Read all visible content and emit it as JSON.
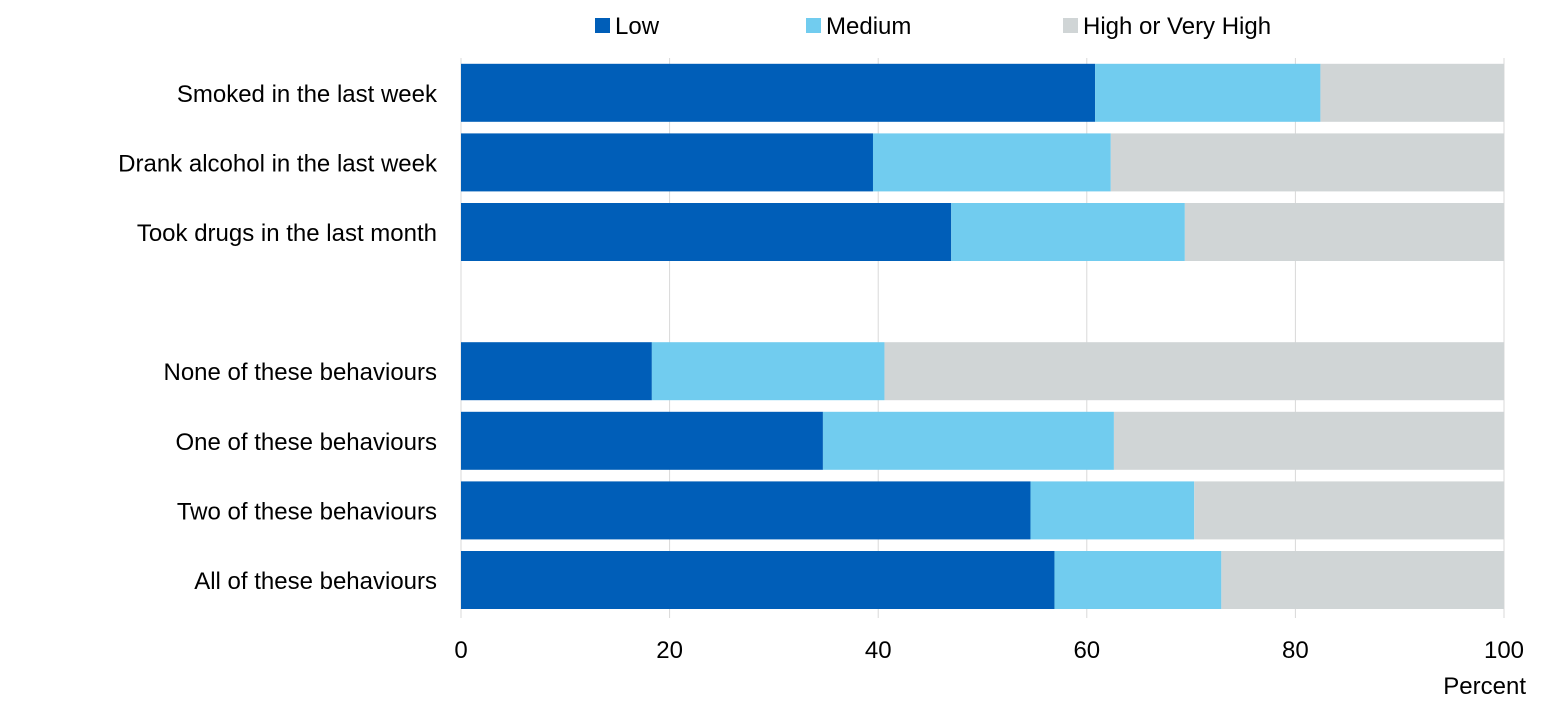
{
  "chart_data": {
    "type": "bar",
    "orientation": "horizontal",
    "stacked": true,
    "categories": [
      "Smoked in the last week",
      "Drank alcohol in the last week",
      "Took drugs in the last month",
      "",
      "None of these behaviours",
      "One of these behaviours",
      "Two of these behaviours",
      "All of these behaviours"
    ],
    "series": [
      {
        "name": "Low",
        "color": "#005EB8",
        "values": [
          60.8,
          39.5,
          47.0,
          null,
          18.3,
          34.7,
          54.6,
          56.9
        ]
      },
      {
        "name": "Medium",
        "color": "#71CCEF",
        "values": [
          21.6,
          22.8,
          22.4,
          null,
          22.3,
          27.9,
          15.7,
          16.0
        ]
      },
      {
        "name": "High or Very High",
        "color": "#D0D5D6",
        "values": [
          17.6,
          37.7,
          30.6,
          null,
          59.4,
          37.4,
          29.7,
          27.1
        ]
      }
    ],
    "xlabel": "Percent",
    "xlim": [
      0,
      100
    ],
    "xticks": [
      0,
      20,
      40,
      60,
      80,
      100
    ],
    "grid": true,
    "legend_position": "top"
  }
}
